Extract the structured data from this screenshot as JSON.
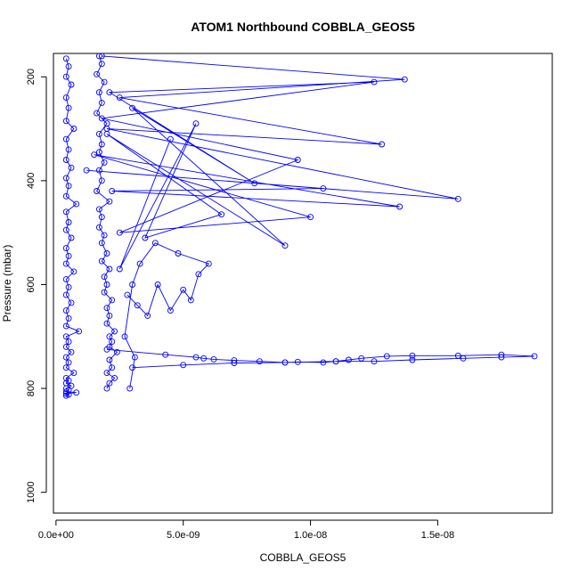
{
  "chart_data": {
    "type": "line",
    "title": "ATOM1 Northbound COBBLA_GEOS5",
    "xlabel": "COBBLA_GEOS5",
    "ylabel": "Pressure (mbar)",
    "xlim": [
      -1e-10,
      1.95e-08
    ],
    "ylim": [
      1040,
      155
    ],
    "y_reversed": true,
    "x_ticks": [
      0,
      5e-09,
      1e-08,
      1.5e-08
    ],
    "x_tick_labels": [
      "0.0e+00",
      "5.0e-09",
      "1.0e-08",
      "1.5e-08"
    ],
    "y_ticks": [
      200,
      400,
      600,
      800,
      1000
    ],
    "y_tick_labels": [
      "200",
      "400",
      "600",
      "800",
      "1000"
    ],
    "grid": false,
    "legend": "none",
    "line_color": "#0000ff",
    "series": [
      {
        "x": [
          4e-10,
          5e-10,
          4e-10,
          6e-10,
          4e-10,
          5e-10,
          4e-10,
          7e-10,
          4e-10,
          5e-10,
          4e-10,
          6e-10,
          4e-10,
          5e-10,
          4e-10,
          8e-10,
          4e-10,
          5e-10,
          4e-10,
          6e-10,
          4e-10,
          5e-10,
          4e-10,
          7e-10,
          4e-10,
          5e-10,
          4e-10,
          6e-10,
          4e-10,
          5e-10,
          4e-10,
          9e-10,
          4e-10,
          5e-10,
          4e-10,
          6e-10,
          4e-10,
          5e-10,
          4e-10,
          7e-10,
          4e-10,
          5e-10,
          4e-10,
          6e-10,
          4e-10,
          5e-10,
          4e-10,
          8e-10,
          4e-10,
          5e-10,
          4e-10
        ],
        "y": [
          165,
          180,
          200,
          215,
          240,
          260,
          285,
          300,
          320,
          340,
          360,
          375,
          395,
          410,
          430,
          445,
          460,
          480,
          495,
          510,
          530,
          545,
          560,
          575,
          590,
          605,
          620,
          635,
          650,
          665,
          680,
          690,
          700,
          710,
          720,
          730,
          740,
          750,
          760,
          770,
          780,
          785,
          790,
          795,
          800,
          803,
          806,
          808,
          810,
          812,
          814
        ]
      },
      {
        "x": [
          1.7e-09,
          1.8e-09,
          1.6e-09,
          1.9e-09,
          1.7e-09,
          1.8e-09,
          1.6e-09,
          2e-09,
          1.7e-09,
          1.8e-09,
          1.7e-09,
          1.9e-09,
          1.7e-09,
          1.8e-09,
          1.6e-09,
          2.1e-09,
          1.7e-09,
          1.8e-09,
          1.7e-09,
          1.9e-09,
          1.8e-09,
          2e-09,
          1.8e-09,
          2.1e-09,
          1.9e-09,
          2e-09,
          1.9e-09,
          2.2e-09,
          2e-09,
          2.1e-09,
          2e-09,
          2.3e-09,
          2.1e-09,
          2.2e-09,
          2.1e-09,
          2.4e-09,
          2.1e-09,
          2.2e-09,
          2e-09,
          2.3e-09,
          2.1e-09,
          2e-09
        ],
        "y": [
          160,
          175,
          195,
          210,
          230,
          250,
          270,
          290,
          310,
          330,
          345,
          365,
          380,
          400,
          420,
          440,
          455,
          470,
          490,
          505,
          520,
          540,
          555,
          570,
          585,
          600,
          615,
          630,
          645,
          660,
          675,
          690,
          700,
          710,
          720,
          730,
          745,
          760,
          770,
          780,
          790,
          800
        ]
      },
      {
        "x": [
          1.8e-09,
          1.37e-08,
          2.5e-09,
          1.28e-08,
          2e-09,
          1.58e-08,
          1.2e-09,
          1.05e-08,
          2.2e-09,
          1.35e-08,
          1.5e-09,
          1e-08,
          2.5e-09,
          9.5e-09,
          1.8e-09,
          1.25e-08,
          2.1e-09,
          7.8e-09,
          3e-09,
          9e-09,
          2e-09,
          6.5e-09,
          3.5e-09,
          5.5e-09,
          2.5e-09,
          4.5e-09
        ],
        "y": [
          160,
          205,
          240,
          330,
          300,
          435,
          380,
          415,
          420,
          450,
          350,
          470,
          500,
          360,
          280,
          210,
          230,
          405,
          260,
          525,
          310,
          465,
          510,
          290,
          570,
          320
        ]
      },
      {
        "x": [
          2e-09,
          4.3e-09,
          5.5e-09,
          5.8e-09,
          6.2e-09,
          7e-09,
          8e-09,
          9e-09,
          9.5e-09,
          1.05e-08,
          1.1e-08,
          1.15e-08,
          1.2e-08,
          1.3e-08,
          1.4e-08,
          1.58e-08,
          1.75e-08,
          1.88e-08,
          1.75e-08,
          1.6e-08,
          1.4e-08,
          1.25e-08,
          1.1e-08,
          9e-09,
          7e-09,
          5e-09,
          3e-09
        ],
        "y": [
          725,
          735,
          740,
          742,
          744,
          746,
          748,
          750,
          749,
          750,
          748,
          745,
          742,
          738,
          737,
          737,
          735,
          738,
          740,
          742,
          745,
          748,
          748,
          750,
          751,
          755,
          760
        ]
      },
      {
        "x": [
          2.8e-09,
          3.2e-09,
          3.6e-09,
          4e-09,
          4.5e-09,
          5e-09,
          5.3e-09,
          5.6e-09,
          6e-09,
          4.8e-09,
          3.9e-09,
          3.3e-09,
          3e-09,
          2.7e-09,
          3.1e-09,
          2.9e-09
        ],
        "y": [
          620,
          640,
          660,
          600,
          650,
          610,
          630,
          580,
          560,
          540,
          520,
          560,
          600,
          700,
          740,
          800
        ]
      }
    ]
  }
}
